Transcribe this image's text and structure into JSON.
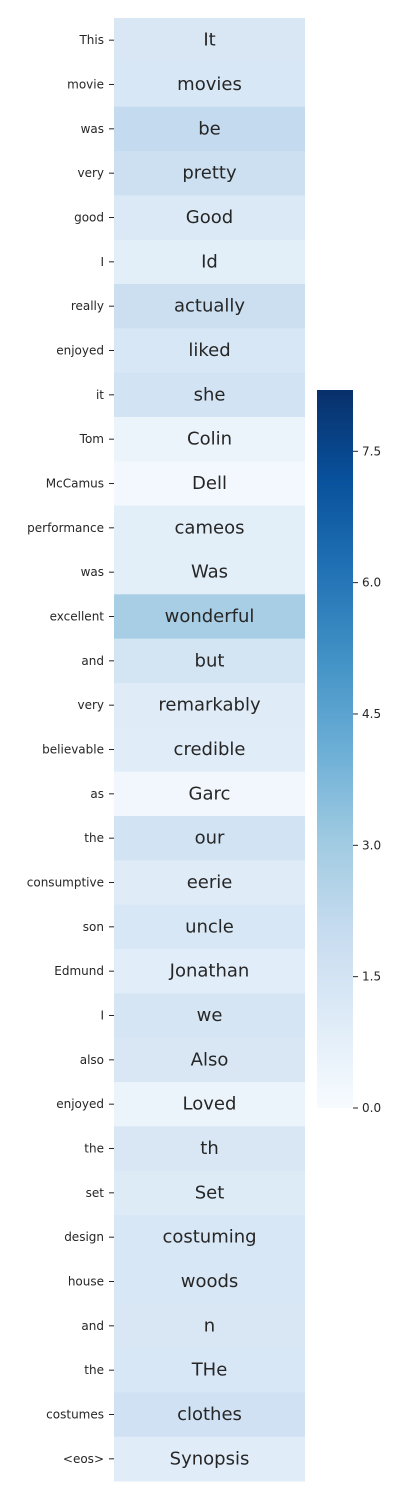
{
  "chart_data": {
    "type": "heatmap",
    "rows": [
      {
        "label": "This",
        "token": "It",
        "value": 1.25
      },
      {
        "label": "movie",
        "token": "movies",
        "value": 1.3
      },
      {
        "label": "was",
        "token": "be",
        "value": 2.1
      },
      {
        "label": "very",
        "token": "pretty",
        "value": 1.75
      },
      {
        "label": "good",
        "token": "Good",
        "value": 1.15
      },
      {
        "label": "I",
        "token": "Id",
        "value": 0.85
      },
      {
        "label": "really",
        "token": "actually",
        "value": 1.8
      },
      {
        "label": "enjoyed",
        "token": "liked",
        "value": 1.3
      },
      {
        "label": "it",
        "token": "she",
        "value": 1.55
      },
      {
        "label": "Tom",
        "token": "Colin",
        "value": 0.5
      },
      {
        "label": "McCamus",
        "token": "Dell",
        "value": 0.2
      },
      {
        "label": "performance",
        "token": "cameos",
        "value": 0.85
      },
      {
        "label": "was",
        "token": "Was",
        "value": 0.85
      },
      {
        "label": "excellent",
        "token": "wonderful",
        "value": 2.85
      },
      {
        "label": "and",
        "token": "but",
        "value": 1.5
      },
      {
        "label": "very",
        "token": "remarkably",
        "value": 1.0
      },
      {
        "label": "believable",
        "token": "credible",
        "value": 0.95
      },
      {
        "label": "as",
        "token": "Garc",
        "value": 0.25
      },
      {
        "label": "the",
        "token": "our",
        "value": 1.55
      },
      {
        "label": "consumptive",
        "token": "eerie",
        "value": 1.0
      },
      {
        "label": "son",
        "token": "uncle",
        "value": 1.3
      },
      {
        "label": "Edmund",
        "token": "Jonathan",
        "value": 0.9
      },
      {
        "label": "I",
        "token": "we",
        "value": 1.4
      },
      {
        "label": "also",
        "token": "Also",
        "value": 1.25
      },
      {
        "label": "enjoyed",
        "token": "Loved",
        "value": 0.45
      },
      {
        "label": "the",
        "token": "th",
        "value": 1.25
      },
      {
        "label": "set",
        "token": "Set",
        "value": 1.05
      },
      {
        "label": "design",
        "token": "costuming",
        "value": 1.3
      },
      {
        "label": "house",
        "token": "woods",
        "value": 1.3
      },
      {
        "label": "and",
        "token": "n",
        "value": 1.25
      },
      {
        "label": "the",
        "token": "THe",
        "value": 1.3
      },
      {
        "label": "costumes",
        "token": "clothes",
        "value": 1.65
      },
      {
        "label": "<eos>",
        "token": "Synopsis",
        "value": 0.95
      }
    ],
    "colorbar": {
      "cmap": "Blues",
      "vmin": 0.0,
      "vmax": 8.2,
      "ticks": [
        "0.0",
        "1.5",
        "3.0",
        "4.5",
        "6.0",
        "7.5"
      ]
    }
  }
}
